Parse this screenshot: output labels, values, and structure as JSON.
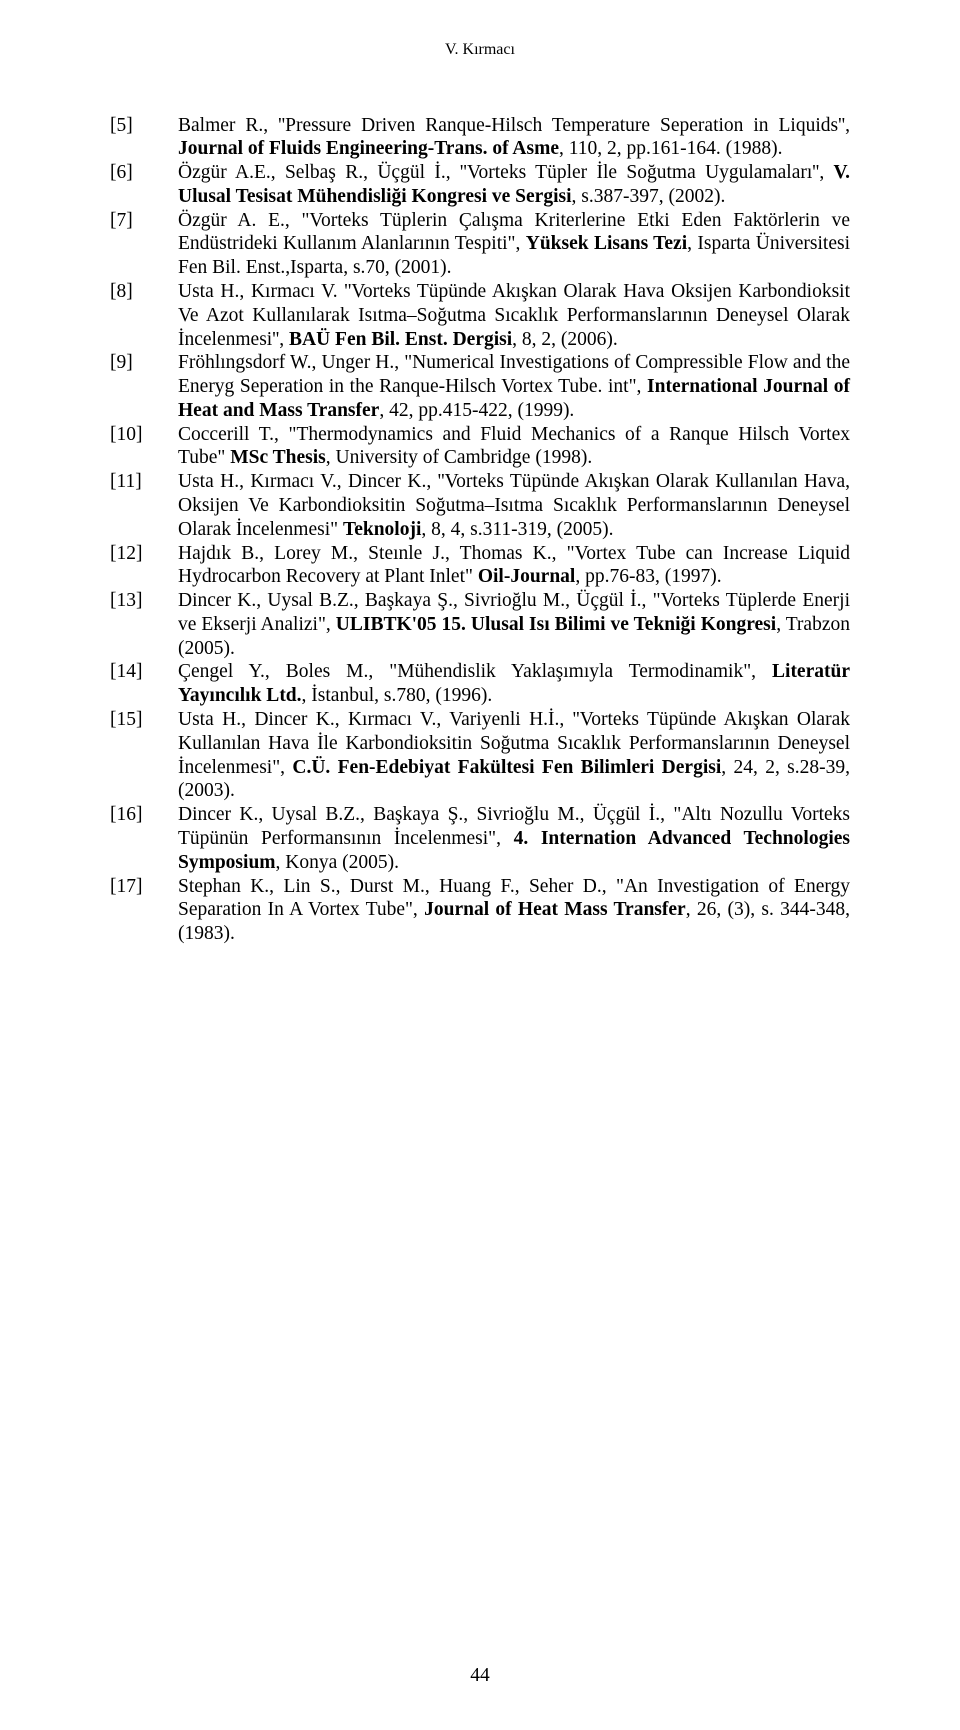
{
  "running_head": "V. Kırmacı",
  "page_number": "44",
  "references": [
    {
      "num": "[5]",
      "segments": [
        {
          "t": "Balmer R., ''Pressure Driven Ranque-Hilsch Temperature Seperation in Liquids'', ",
          "b": false
        },
        {
          "t": "Journal of Fluids Engineering-Trans.  of Asme",
          "b": true
        },
        {
          "t": ", 110, 2, pp.161-164. (1988).",
          "b": false
        }
      ]
    },
    {
      "num": "[6]",
      "segments": [
        {
          "t": "Özgür A.E., Selbaş R., Üçgül İ., ''Vorteks Tüpler İle Soğutma Uygulamaları'', ",
          "b": false
        },
        {
          "t": "V. Ulusal Tesisat Mühendisliği Kongresi ve Sergisi",
          "b": true
        },
        {
          "t": ", s.387-397, (2002).",
          "b": false
        }
      ]
    },
    {
      "num": "[7]",
      "segments": [
        {
          "t": "Özgür A. E., \"Vorteks Tüplerin Çalışma Kriterlerine Etki Eden Faktörlerin ve Endüstrideki Kullanım Alanlarının Tespiti\", ",
          "b": false
        },
        {
          "t": "Yüksek Lisans Tezi",
          "b": true
        },
        {
          "t": ", Isparta Üniversitesi Fen Bil. Enst.,Isparta, s.70, (2001).",
          "b": false
        }
      ]
    },
    {
      "num": "[8]",
      "segments": [
        {
          "t": "Usta H., Kırmacı V. ''Vorteks Tüpünde Akışkan Olarak Hava Oksijen Karbondioksit Ve Azot Kullanılarak Isıtma–Soğutma Sıcaklık Performanslarının Deneysel Olarak İncelenmesi'', ",
          "b": false
        },
        {
          "t": "BAÜ Fen Bil. Enst.  Dergisi",
          "b": true
        },
        {
          "t": ", 8, 2, (2006).",
          "b": false
        }
      ]
    },
    {
      "num": "[9]",
      "segments": [
        {
          "t": "Fröhlıngsdorf W., Unger H., \"Numerical Investigations of Compressible Flow and the Eneryg Seperation in the Ranque-Hilsch Vortex Tube.  int\", ",
          "b": false
        },
        {
          "t": "International Journal of Heat and Mass Transfer",
          "b": true
        },
        {
          "t": ", 42, pp.415-422, (1999).",
          "b": false
        }
      ]
    },
    {
      "num": "[10]",
      "segments": [
        {
          "t": "Coccerill T., \"Thermodynamics and Fluid Mechanics of a Ranque Hilsch Vortex Tube\" ",
          "b": false
        },
        {
          "t": "MSc Thesis",
          "b": true
        },
        {
          "t": ", University of Cambridge (1998).",
          "b": false
        }
      ]
    },
    {
      "num": "[11]",
      "segments": [
        {
          "t": "Usta H., Kırmacı V., Dincer K., ''Vorteks Tüpünde Akışkan Olarak Kullanılan Hava, Oksijen Ve Karbondioksitin Soğutma–Isıtma Sıcaklık Performanslarının Deneysel Olarak İncelenmesi\" ",
          "b": false
        },
        {
          "t": "Teknoloji",
          "b": true
        },
        {
          "t": ", 8, 4, s.311-319, (2005).",
          "b": false
        }
      ]
    },
    {
      "num": "[12]",
      "segments": [
        {
          "t": "Hajdık B., Lorey M., Steınle J., Thomas K., \"Vortex Tube can Increase Liquid Hydrocarbon Recovery at Plant Inlet\" ",
          "b": false
        },
        {
          "t": "Oil-Journal",
          "b": true
        },
        {
          "t": ", pp.76-83, (1997).",
          "b": false
        }
      ]
    },
    {
      "num": "[13]",
      "segments": [
        {
          "t": "Dincer K., Uysal B.Z., Başkaya Ş., Sivrioğlu M., Üçgül İ., \"Vorteks Tüplerde Enerji ve Ekserji Analizi\",  ",
          "b": false
        },
        {
          "t": "ULIBTK'05 15.  Ulusal Isı Bilimi ve Tekniği Kongresi",
          "b": true
        },
        {
          "t": ", Trabzon (2005).",
          "b": false
        }
      ]
    },
    {
      "num": "[14]",
      "segments": [
        {
          "t": "Çengel Y., Boles M., \"Mühendislik Yaklaşımıyla Termodinamik\", ",
          "b": false
        },
        {
          "t": "Literatür Yayıncılık Ltd.",
          "b": true
        },
        {
          "t": ", İstanbul, s.780, (1996).",
          "b": false
        }
      ]
    },
    {
      "num": "[15]",
      "segments": [
        {
          "t": "Usta H., Dincer K., Kırmacı V., Variyenli H.İ., ''Vorteks Tüpünde Akışkan Olarak Kullanılan Hava İle Karbondioksitin Soğutma Sıcaklık Performanslarının Deneysel İncelenmesi\", ",
          "b": false
        },
        {
          "t": "C.Ü.  Fen-Edebiyat Fakültesi Fen Bilimleri Dergisi",
          "b": true
        },
        {
          "t": ", 24, 2, s.28-39, (2003).",
          "b": false
        }
      ]
    },
    {
      "num": "[16]",
      "segments": [
        {
          "t": "Dincer K., Uysal B.Z., Başkaya Ş., Sivrioğlu M., Üçgül İ., \"Altı Nozullu Vorteks Tüpünün Performansının İncelenmesi\", ",
          "b": false
        },
        {
          "t": "4.  Internation Advanced Technologies Symposium",
          "b": true
        },
        {
          "t": ", Konya (2005).",
          "b": false
        }
      ]
    },
    {
      "num": "[17]",
      "segments": [
        {
          "t": "Stephan K., Lin S., Durst M., Huang F., Seher D., \"An Investigation of Energy Separation In A Vortex Tube\", ",
          "b": false
        },
        {
          "t": "Journal of Heat Mass Transfer",
          "b": true
        },
        {
          "t": ", 26, (3), s.  344-348, (1983).",
          "b": false
        }
      ]
    }
  ]
}
